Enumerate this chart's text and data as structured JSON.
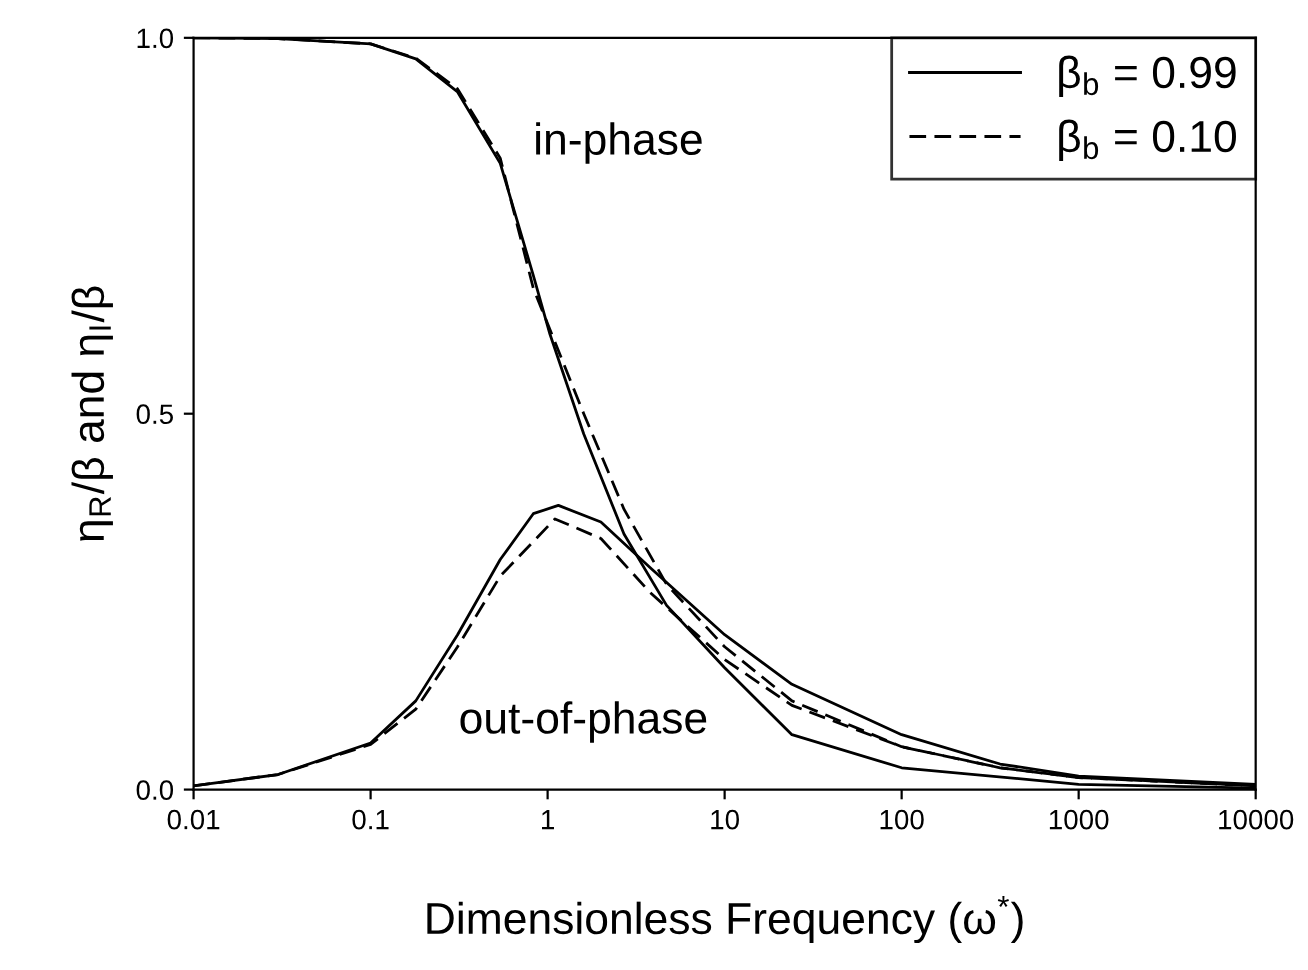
{
  "chart_data": {
    "type": "line",
    "xlabel": "Dimensionless Frequency (ω$^{*}$)",
    "ylabel": "η$_{R}$/β and η$_{I}$/β",
    "log": "x",
    "xlim": [
      0.01,
      10000
    ],
    "xticks": [
      0.01,
      0.1,
      1,
      10,
      100,
      1000,
      10000
    ],
    "ylim": [
      0,
      1
    ],
    "yticks": [
      {
        "value": 0,
        "label": "0.0"
      },
      {
        "value": 0.5,
        "label": "0.5"
      },
      {
        "value": 1,
        "label": "1.0"
      }
    ],
    "grid": false,
    "legend": "top right",
    "marker": "none",
    "series": [
      {
        "name": "β$_{b}$ = 0.99",
        "color": "#000000",
        "line_style": "solid",
        "x": [
          0.01,
          0.03,
          0.1,
          0.18,
          0.31,
          0.54,
          0.83,
          1.03,
          1.6,
          2.7,
          4.7,
          10,
          24,
          100,
          1000,
          10000
        ],
        "values": [
          1.0,
          0.999,
          0.992,
          0.972,
          0.928,
          0.833,
          0.684,
          0.606,
          0.473,
          0.34,
          0.245,
          0.162,
          0.073,
          0.029,
          0.007,
          0.002
        ]
      },
      {
        "name": "β$_{b}$ = 0.10",
        "color": "#000000",
        "line_style": "dashed",
        "x": [
          0.01,
          0.03,
          0.1,
          0.18,
          0.31,
          0.54,
          0.83,
          1.6,
          2.7,
          4.7,
          10,
          24,
          100,
          360,
          1000,
          10000
        ],
        "values": [
          1.0,
          0.999,
          0.992,
          0.973,
          0.932,
          0.84,
          0.667,
          0.5,
          0.373,
          0.273,
          0.19,
          0.118,
          0.057,
          0.029,
          0.016,
          0.005
        ]
      },
      {
        "color": "#000000",
        "line_style": "solid",
        "x": [
          0.01,
          0.03,
          0.1,
          0.18,
          0.31,
          0.54,
          0.83,
          1.15,
          2,
          3.8,
          10,
          24,
          100,
          360,
          1000,
          10000
        ],
        "values": [
          0.005,
          0.02,
          0.062,
          0.118,
          0.206,
          0.306,
          0.367,
          0.378,
          0.356,
          0.295,
          0.206,
          0.14,
          0.073,
          0.034,
          0.018,
          0.007
        ]
      },
      {
        "color": "#000000",
        "line_style": "dashed",
        "x": [
          0.01,
          0.03,
          0.1,
          0.18,
          0.31,
          0.54,
          1.1,
          2,
          3.8,
          10,
          24,
          100,
          360,
          1000,
          10000
        ],
        "values": [
          0.005,
          0.02,
          0.06,
          0.107,
          0.19,
          0.284,
          0.36,
          0.334,
          0.262,
          0.173,
          0.112,
          0.057,
          0.029,
          0.016,
          0.005
        ]
      }
    ],
    "annotations": [
      "in-phase",
      "out-of-phase"
    ]
  }
}
